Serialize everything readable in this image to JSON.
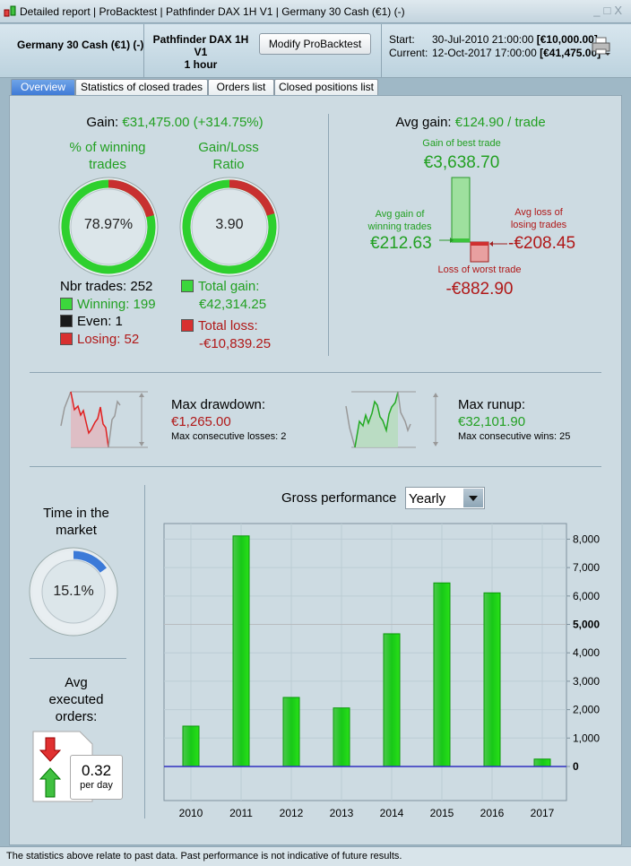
{
  "window": {
    "title_parts": [
      "Detailed report",
      "ProBacktest",
      "Pathfinder DAX 1H V1",
      "Germany 30 Cash (€1) (-)"
    ],
    "controls": [
      "_",
      "□",
      "X"
    ]
  },
  "header": {
    "instrument": "Germany 30 Cash (€1) (-)",
    "system_name": "Pathfinder DAX 1H V1",
    "timeframe": "1 hour",
    "modify_label": "Modify ProBacktest",
    "start_label": "Start:",
    "start_date": "30-Jul-2010 21:00:00",
    "start_value": "[€10,000.00]",
    "current_label": "Current:",
    "current_date": "12-Oct-2017 17:00:00",
    "current_value": "[€41,475.00]"
  },
  "tabs": [
    {
      "label": "Overview",
      "active": true
    },
    {
      "label": "Statistics of closed trades"
    },
    {
      "label": "Orders list"
    },
    {
      "label": "Closed positions list"
    }
  ],
  "summary": {
    "gain_label": "Gain:",
    "gain_value": "€31,475.00 (+314.75%)",
    "winning_title_1": "% of winning",
    "winning_title_2": "trades",
    "winning_pct": "78.97%",
    "winning_fraction": 0.7897,
    "ratio_title_1": "Gain/Loss",
    "ratio_title_2": "Ratio",
    "ratio_value": "3.90",
    "ratio_fraction": 0.796,
    "nbr_trades": "Nbr trades: 252",
    "winning": "Winning: 199",
    "even": "Even: 1",
    "losing": "Losing: 52",
    "total_gain_label": "Total gain:",
    "total_gain": "€42,314.25",
    "total_loss_label": "Total loss:",
    "total_loss": "-€10,839.25"
  },
  "avg": {
    "title_label": "Avg gain:",
    "title_value": "€124.90 / trade",
    "best_label": "Gain of best trade",
    "best_value": "€3,638.70",
    "avg_win_label_1": "Avg gain of",
    "avg_win_label_2": "winning trades",
    "avg_win_value": "€212.63",
    "avg_loss_label_1": "Avg loss of",
    "avg_loss_label_2": "losing trades",
    "avg_loss_value": "-€208.45",
    "worst_label": "Loss of worst trade",
    "worst_value": "-€882.90"
  },
  "drawdown": {
    "label": "Max drawdown:",
    "value": "€1,265.00",
    "sub": "Max consecutive losses: 2"
  },
  "runup": {
    "label": "Max runup:",
    "value": "€32,101.90",
    "sub": "Max consecutive wins: 25"
  },
  "time_market": {
    "title_1": "Time in the",
    "title_2": "market",
    "value": "15.1%",
    "fraction": 0.151
  },
  "orders": {
    "title_1": "Avg",
    "title_2": "executed",
    "title_3": "orders:",
    "value": "0.32",
    "unit": "per day"
  },
  "perf": {
    "title": "Gross performance",
    "period": "Yearly"
  },
  "chart_data": {
    "type": "bar",
    "title": "Gross performance",
    "categories": [
      "2010",
      "2011",
      "2012",
      "2013",
      "2014",
      "2015",
      "2016",
      "2017"
    ],
    "values": [
      1420,
      8115,
      2430,
      2060,
      4670,
      6460,
      6110,
      260
    ],
    "ylim": [
      -1200,
      8550
    ],
    "yticks": [
      0,
      1000,
      2000,
      3000,
      4000,
      5000,
      6000,
      7000,
      8000
    ],
    "ytick_labels": [
      "0",
      "1,000",
      "2,000",
      "3,000",
      "4,000",
      "5,000",
      "6,000",
      "7,000",
      "8,000"
    ],
    "grid": true,
    "bar_color": "#22d014"
  },
  "footer": "The statistics above relate to past data. Past performance is not indicative of future results."
}
